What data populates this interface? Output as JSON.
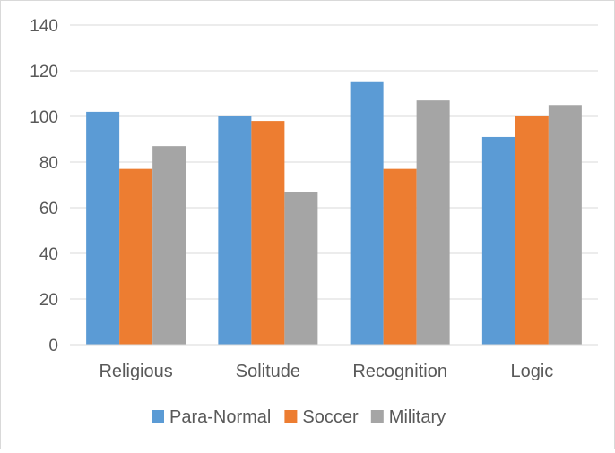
{
  "chart_data": {
    "type": "bar",
    "title": "",
    "xlabel": "",
    "ylabel": "",
    "categories": [
      "Religious",
      "Solitude",
      "Recognition",
      "Logic"
    ],
    "series": [
      {
        "name": "Para-Normal",
        "color": "#5b9bd5",
        "values": [
          102,
          100,
          115,
          91
        ]
      },
      {
        "name": "Soccer",
        "color": "#ed7d31",
        "values": [
          77,
          98,
          77,
          100
        ]
      },
      {
        "name": "Military",
        "color": "#a5a5a5",
        "values": [
          87,
          67,
          107,
          105
        ]
      }
    ],
    "ylim": [
      0,
      140
    ],
    "yticks": [
      0,
      20,
      40,
      60,
      80,
      100,
      120,
      140
    ],
    "grid": true,
    "legend_position": "bottom"
  }
}
